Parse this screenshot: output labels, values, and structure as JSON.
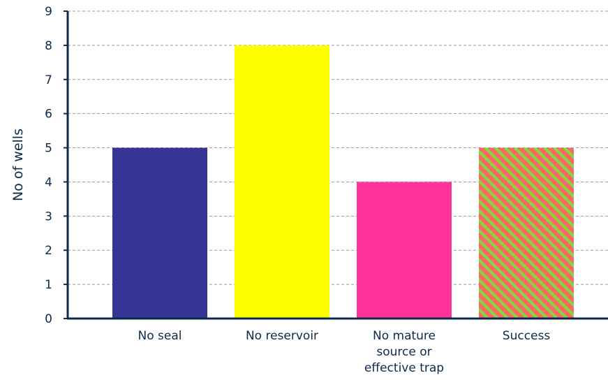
{
  "chart_data": {
    "type": "bar",
    "categories": [
      "No seal",
      "No reservoir",
      "No mature source or effective trap",
      "Success"
    ],
    "category_lines": [
      [
        "No seal"
      ],
      [
        "No reservoir"
      ],
      [
        "No mature",
        "source or",
        "effective trap"
      ],
      [
        "Success"
      ]
    ],
    "values": [
      5,
      8,
      4,
      5
    ],
    "colors": [
      "#353594",
      "#ffff00",
      "#ff3399",
      "#ff6666"
    ],
    "success_stripe_color": "#7cdc3c",
    "bar_styles": [
      "solid",
      "solid",
      "solid",
      "striped"
    ],
    "xlabel": "",
    "ylabel": "No of wells",
    "ylim": [
      0,
      9
    ],
    "yticks": [
      0,
      1,
      2,
      3,
      4,
      5,
      6,
      7,
      8,
      9
    ],
    "grid": true,
    "axis_color": "#0c2a4a"
  }
}
